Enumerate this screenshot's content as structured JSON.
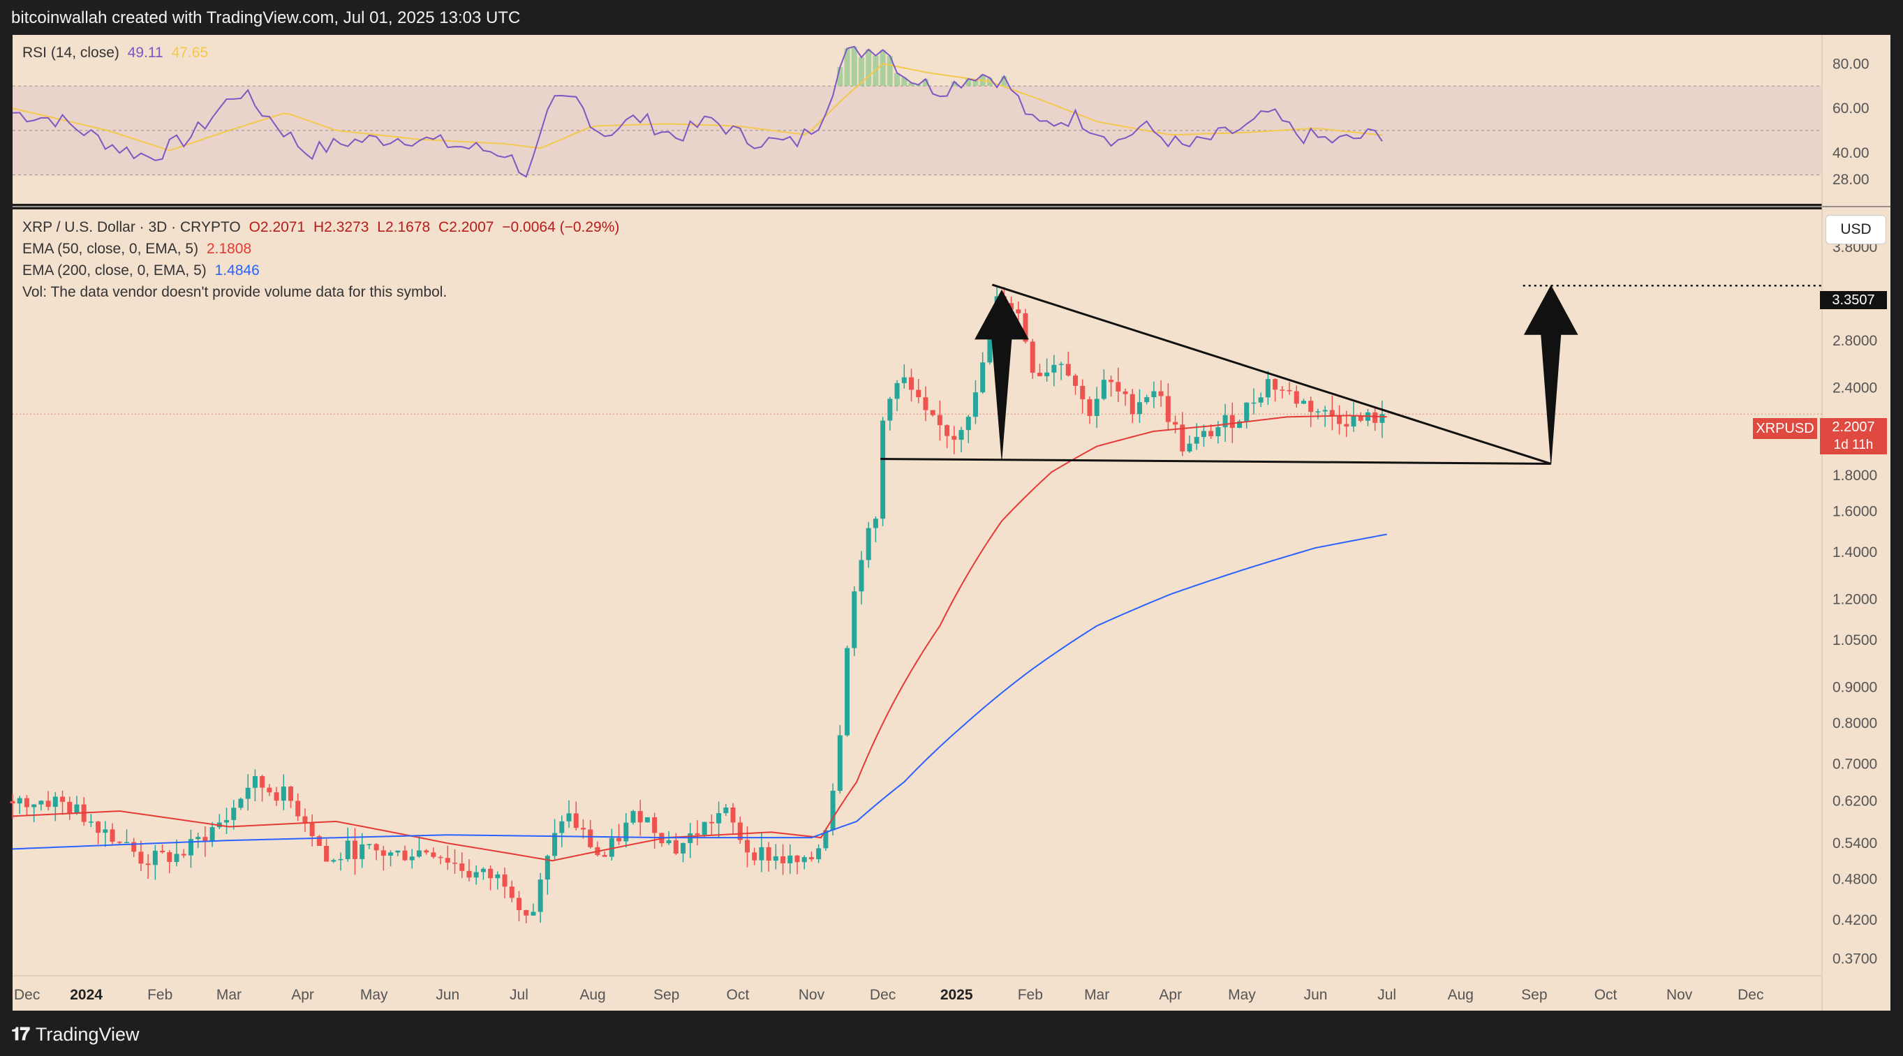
{
  "header": {
    "attribution": "bitcoinwallah created with TradingView.com, Jul 01, 2025 13:03 UTC"
  },
  "footer": {
    "brand": "TradingView",
    "logo_icon": "tradingview-logo-icon"
  },
  "colors": {
    "background": "#f3e0cd",
    "rsi_line": "#7e57c2",
    "rsi_ma": "#f2c94c",
    "ema50": "#e53935",
    "ema200": "#2962ff",
    "up": "#26a69a",
    "down": "#ef5350"
  },
  "rsi_panel": {
    "title": "RSI (14, close)",
    "value": "49.11",
    "ma_value": "47.65",
    "levels": [
      "80.00",
      "60.00",
      "40.00",
      "28.00"
    ]
  },
  "price_panel": {
    "title": "XRP / U.S. Dollar · 3D · CRYPTO",
    "open": "O2.2071",
    "high": "H2.3273",
    "low": "L2.1678",
    "close": "C2.2007",
    "change": "−0.0064 (−0.29%)",
    "ema50_label": "EMA (50, close, 0, EMA, 5)",
    "ema50_value": "2.1808",
    "ema200_label": "EMA (200, close, 0, EMA, 5)",
    "ema200_value": "1.4846",
    "volume_note": "Vol: The data vendor doesn't provide volume data for this symbol.",
    "currency": "USD",
    "target_tag": "3.3507",
    "symbol_tag": "XRPUSD",
    "price_tag": "2.2007",
    "countdown_tag": "1d 11h"
  },
  "chart_data": {
    "type": "candlestick",
    "symbol": "XRPUSD",
    "y_scale": "log",
    "ylim": [
      0.35,
      4.3
    ],
    "y_ticks": [
      "3.8000",
      "3.2000",
      "2.8000",
      "2.4000",
      "2.0000",
      "1.8000",
      "1.6000",
      "1.4000",
      "1.2000",
      "1.0500",
      "0.9000",
      "0.8000",
      "0.7000",
      "0.6200",
      "0.5400",
      "0.4800",
      "0.4200",
      "0.3700"
    ],
    "x_ticks": [
      "Dec",
      "2024",
      "Feb",
      "Mar",
      "Apr",
      "May",
      "Jun",
      "Jul",
      "Aug",
      "Sep",
      "Oct",
      "Nov",
      "Dec",
      "2025",
      "Feb",
      "Mar",
      "Apr",
      "May",
      "Jun",
      "Jul",
      "Aug",
      "Sep",
      "Oct",
      "Nov",
      "Dec"
    ],
    "bold_x_ticks": [
      "2024",
      "2025"
    ],
    "x_range": [
      "2023-12-01",
      "2025-12-31"
    ],
    "last_date": "2025-07-01",
    "anchors": [
      [
        "2023-12-01",
        0.62
      ],
      [
        "2023-12-20",
        0.62
      ],
      [
        "2024-01-08",
        0.57
      ],
      [
        "2024-01-25",
        0.51
      ],
      [
        "2024-02-10",
        0.52
      ],
      [
        "2024-03-01",
        0.59
      ],
      [
        "2024-03-10",
        0.66
      ],
      [
        "2024-03-25",
        0.63
      ],
      [
        "2024-04-03",
        0.58
      ],
      [
        "2024-04-12",
        0.5
      ],
      [
        "2024-04-20",
        0.53
      ],
      [
        "2024-05-10",
        0.52
      ],
      [
        "2024-05-25",
        0.53
      ],
      [
        "2024-06-10",
        0.49
      ],
      [
        "2024-06-25",
        0.48
      ],
      [
        "2024-07-06",
        0.42
      ],
      [
        "2024-07-20",
        0.6
      ],
      [
        "2024-08-05",
        0.51
      ],
      [
        "2024-08-20",
        0.6
      ],
      [
        "2024-09-05",
        0.53
      ],
      [
        "2024-09-25",
        0.6
      ],
      [
        "2024-10-05",
        0.53
      ],
      [
        "2024-10-30",
        0.5
      ],
      [
        "2024-11-06",
        0.55
      ],
      [
        "2024-11-12",
        0.7
      ],
      [
        "2024-11-16",
        1.05
      ],
      [
        "2024-11-22",
        1.4
      ],
      [
        "2024-11-28",
        1.55
      ],
      [
        "2024-12-02",
        2.35
      ],
      [
        "2024-12-10",
        2.45
      ],
      [
        "2024-12-20",
        2.15
      ],
      [
        "2024-12-31",
        2.05
      ],
      [
        "2025-01-10",
        2.35
      ],
      [
        "2025-01-16",
        3.1
      ],
      [
        "2025-01-20",
        3.25
      ],
      [
        "2025-01-27",
        3.05
      ],
      [
        "2025-02-03",
        2.5
      ],
      [
        "2025-02-15",
        2.65
      ],
      [
        "2025-02-25",
        2.2
      ],
      [
        "2025-03-05",
        2.45
      ],
      [
        "2025-03-15",
        2.25
      ],
      [
        "2025-03-25",
        2.4
      ],
      [
        "2025-04-07",
        1.95
      ],
      [
        "2025-04-20",
        2.1
      ],
      [
        "2025-05-01",
        2.2
      ],
      [
        "2025-05-12",
        2.45
      ],
      [
        "2025-05-25",
        2.3
      ],
      [
        "2025-06-05",
        2.2
      ],
      [
        "2025-06-20",
        2.15
      ],
      [
        "2025-07-01",
        2.2007
      ]
    ],
    "ema50_anchors": [
      [
        "2023-12-01",
        0.59
      ],
      [
        "2024-01-15",
        0.6
      ],
      [
        "2024-03-01",
        0.57
      ],
      [
        "2024-04-15",
        0.58
      ],
      [
        "2024-06-01",
        0.54
      ],
      [
        "2024-07-15",
        0.51
      ],
      [
        "2024-09-01",
        0.55
      ],
      [
        "2024-10-15",
        0.56
      ],
      [
        "2024-11-05",
        0.55
      ],
      [
        "2024-11-20",
        0.66
      ],
      [
        "2024-12-05",
        0.85
      ],
      [
        "2024-12-25",
        1.1
      ],
      [
        "2025-01-20",
        1.55
      ],
      [
        "2025-02-10",
        1.82
      ],
      [
        "2025-03-01",
        1.98
      ],
      [
        "2025-03-25",
        2.08
      ],
      [
        "2025-04-20",
        2.12
      ],
      [
        "2025-05-20",
        2.18
      ],
      [
        "2025-06-15",
        2.19
      ],
      [
        "2025-07-01",
        2.1808
      ]
    ],
    "ema200_anchors": [
      [
        "2023-12-01",
        0.53
      ],
      [
        "2024-03-01",
        0.545
      ],
      [
        "2024-06-01",
        0.555
      ],
      [
        "2024-09-01",
        0.55
      ],
      [
        "2024-11-01",
        0.55
      ],
      [
        "2024-11-20",
        0.58
      ],
      [
        "2024-12-10",
        0.66
      ],
      [
        "2025-01-05",
        0.8
      ],
      [
        "2025-02-01",
        0.95
      ],
      [
        "2025-03-01",
        1.1
      ],
      [
        "2025-04-01",
        1.22
      ],
      [
        "2025-05-01",
        1.32
      ],
      [
        "2025-06-01",
        1.42
      ],
      [
        "2025-07-01",
        1.4846
      ]
    ],
    "rsi_anchors": [
      [
        "2023-12-01",
        58
      ],
      [
        "2023-12-20",
        55
      ],
      [
        "2024-01-15",
        42
      ],
      [
        "2024-01-28",
        38
      ],
      [
        "2024-02-15",
        48
      ],
      [
        "2024-03-05",
        68
      ],
      [
        "2024-03-20",
        54
      ],
      [
        "2024-04-03",
        40
      ],
      [
        "2024-04-20",
        45
      ],
      [
        "2024-05-15",
        47
      ],
      [
        "2024-06-05",
        43
      ],
      [
        "2024-06-25",
        40
      ],
      [
        "2024-07-05",
        30
      ],
      [
        "2024-07-15",
        62
      ],
      [
        "2024-07-25",
        64
      ],
      [
        "2024-08-05",
        48
      ],
      [
        "2024-08-20",
        56
      ],
      [
        "2024-09-05",
        47
      ],
      [
        "2024-09-20",
        55
      ],
      [
        "2024-10-05",
        46
      ],
      [
        "2024-10-25",
        44
      ],
      [
        "2024-11-05",
        55
      ],
      [
        "2024-11-15",
        84
      ],
      [
        "2024-12-01",
        88
      ],
      [
        "2024-12-10",
        75
      ],
      [
        "2024-12-25",
        68
      ],
      [
        "2025-01-10",
        76
      ],
      [
        "2025-01-22",
        72
      ],
      [
        "2025-02-03",
        52
      ],
      [
        "2025-02-20",
        56
      ],
      [
        "2025-03-10",
        45
      ],
      [
        "2025-03-20",
        52
      ],
      [
        "2025-04-07",
        42
      ],
      [
        "2025-04-20",
        47
      ],
      [
        "2025-05-05",
        52
      ],
      [
        "2025-05-12",
        58
      ],
      [
        "2025-05-25",
        48
      ],
      [
        "2025-06-10",
        45
      ],
      [
        "2025-06-25",
        48
      ],
      [
        "2025-07-01",
        49.11
      ]
    ],
    "rsi_ma_anchors": [
      [
        "2023-12-01",
        60
      ],
      [
        "2024-01-10",
        50
      ],
      [
        "2024-02-05",
        41
      ],
      [
        "2024-03-01",
        50
      ],
      [
        "2024-03-25",
        58
      ],
      [
        "2024-04-15",
        50
      ],
      [
        "2024-05-20",
        46
      ],
      [
        "2024-06-25",
        44
      ],
      [
        "2024-07-10",
        42
      ],
      [
        "2024-08-01",
        52
      ],
      [
        "2024-09-01",
        53
      ],
      [
        "2024-10-01",
        52
      ],
      [
        "2024-10-30",
        48
      ],
      [
        "2024-11-15",
        65
      ],
      [
        "2024-12-01",
        80
      ],
      [
        "2024-12-20",
        76
      ],
      [
        "2025-01-15",
        72
      ],
      [
        "2025-02-05",
        64
      ],
      [
        "2025-03-01",
        54
      ],
      [
        "2025-04-01",
        48
      ],
      [
        "2025-05-01",
        49
      ],
      [
        "2025-06-01",
        51
      ],
      [
        "2025-07-01",
        47.65
      ]
    ],
    "annotations": {
      "upper_trendline": [
        [
          "2025-01-16",
          3.36
        ],
        [
          "2025-09-08",
          1.87
        ]
      ],
      "lower_trendline": [
        [
          "2024-11-30",
          1.9
        ],
        [
          "2025-09-08",
          1.87
        ]
      ],
      "pole_arrow": [
        [
          "2025-01-20",
          1.9
        ],
        [
          "2025-01-20",
          3.3
        ]
      ],
      "breakout_arrow": [
        [
          "2025-09-08",
          1.87
        ],
        [
          "2025-09-08",
          3.35
        ]
      ],
      "target_level": 3.3507
    }
  }
}
